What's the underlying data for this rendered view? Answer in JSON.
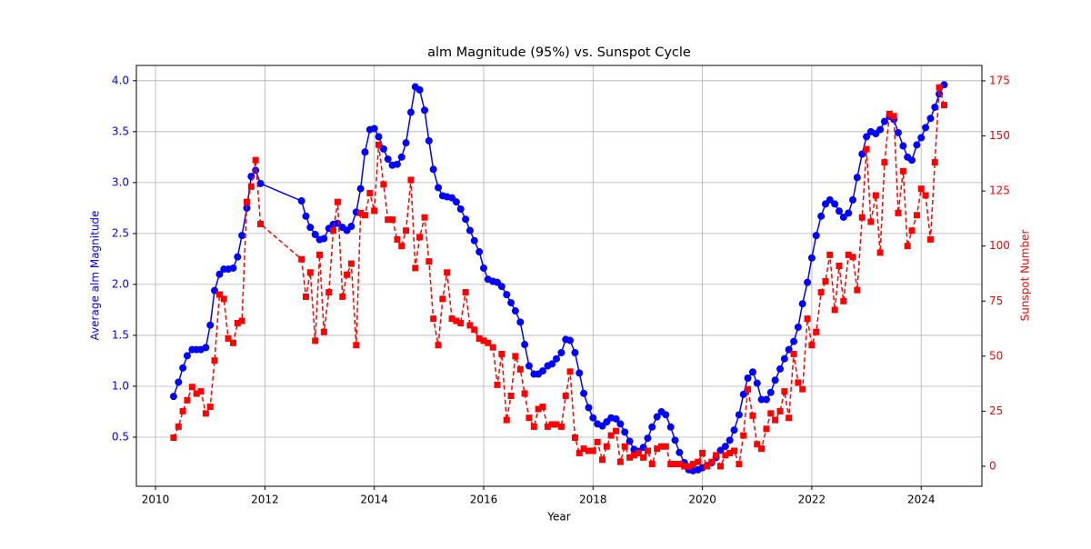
{
  "chart_data": {
    "type": "line",
    "title": "alm Magnitude (95%) vs. Sunspot Cycle",
    "xlabel": "Year",
    "ylabel": "Average alm Magnitude",
    "y2label": "Sunspot Number",
    "x": [
      2010.33,
      2010.42,
      2010.5,
      2010.58,
      2010.67,
      2010.75,
      2010.83,
      2010.92,
      2011.0,
      2011.08,
      2011.17,
      2011.25,
      2011.33,
      2011.42,
      2011.5,
      2011.58,
      2011.67,
      2011.75,
      2011.83,
      2011.92,
      2012.67,
      2012.75,
      2012.83,
      2012.92,
      2013.0,
      2013.08,
      2013.17,
      2013.25,
      2013.33,
      2013.42,
      2013.5,
      2013.58,
      2013.67,
      2013.75,
      2013.83,
      2013.92,
      2014.0,
      2014.08,
      2014.17,
      2014.25,
      2014.33,
      2014.42,
      2014.5,
      2014.58,
      2014.67,
      2014.75,
      2014.83,
      2014.92,
      2015.0,
      2015.08,
      2015.17,
      2015.25,
      2015.33,
      2015.42,
      2015.5,
      2015.58,
      2015.67,
      2015.75,
      2015.83,
      2015.92,
      2016.0,
      2016.08,
      2016.17,
      2016.25,
      2016.33,
      2016.42,
      2016.5,
      2016.58,
      2016.67,
      2016.75,
      2016.83,
      2016.92,
      2017.0,
      2017.08,
      2017.17,
      2017.25,
      2017.33,
      2017.42,
      2017.5,
      2017.58,
      2017.67,
      2017.75,
      2017.83,
      2017.92,
      2018.0,
      2018.08,
      2018.17,
      2018.25,
      2018.33,
      2018.42,
      2018.5,
      2018.58,
      2018.67,
      2018.75,
      2018.83,
      2018.92,
      2019.0,
      2019.08,
      2019.17,
      2019.25,
      2019.33,
      2019.42,
      2019.5,
      2019.58,
      2019.67,
      2019.75,
      2019.83,
      2019.92,
      2020.0,
      2020.08,
      2020.17,
      2020.25,
      2020.33,
      2020.42,
      2020.5,
      2020.58,
      2020.67,
      2020.75,
      2020.83,
      2020.92,
      2021.0,
      2021.08,
      2021.17,
      2021.25,
      2021.33,
      2021.42,
      2021.5,
      2021.58,
      2021.67,
      2021.75,
      2021.83,
      2021.92,
      2022.0,
      2022.08,
      2022.17,
      2022.25,
      2022.33,
      2022.42,
      2022.5,
      2022.58,
      2022.67,
      2022.75,
      2022.83,
      2022.92,
      2023.0,
      2023.08,
      2023.17,
      2023.25,
      2023.33,
      2023.42,
      2023.5,
      2023.58,
      2023.67,
      2023.75,
      2023.83,
      2023.92,
      2024.0,
      2024.08,
      2024.17,
      2024.25,
      2024.33,
      2024.42
    ],
    "series": [
      {
        "color": "#0000ff",
        "marker": "circle",
        "linestyle": "solid",
        "axis": "y",
        "values": [
          0.9,
          1.04,
          1.18,
          1.3,
          1.36,
          1.36,
          1.36,
          1.38,
          1.6,
          1.94,
          2.1,
          2.15,
          2.15,
          2.16,
          2.27,
          2.48,
          2.75,
          3.06,
          3.12,
          2.99,
          2.82,
          2.67,
          2.56,
          2.49,
          2.44,
          2.45,
          2.55,
          2.59,
          2.6,
          2.56,
          2.53,
          2.57,
          2.71,
          2.94,
          3.3,
          3.52,
          3.53,
          3.45,
          3.33,
          3.23,
          3.17,
          3.18,
          3.25,
          3.39,
          3.69,
          3.94,
          3.91,
          3.71,
          3.41,
          3.13,
          2.95,
          2.87,
          2.86,
          2.85,
          2.81,
          2.74,
          2.64,
          2.53,
          2.43,
          2.32,
          2.16,
          2.05,
          2.03,
          2.02,
          1.98,
          1.9,
          1.82,
          1.74,
          1.63,
          1.41,
          1.2,
          1.12,
          1.12,
          1.15,
          1.2,
          1.22,
          1.27,
          1.33,
          1.46,
          1.45,
          1.33,
          1.13,
          0.93,
          0.79,
          0.69,
          0.63,
          0.61,
          0.65,
          0.69,
          0.68,
          0.63,
          0.55,
          0.46,
          0.38,
          0.36,
          0.4,
          0.49,
          0.6,
          0.7,
          0.75,
          0.72,
          0.6,
          0.47,
          0.35,
          0.25,
          0.18,
          0.17,
          0.18,
          0.2,
          0.22,
          0.25,
          0.3,
          0.37,
          0.41,
          0.47,
          0.57,
          0.72,
          0.92,
          1.08,
          1.14,
          1.03,
          0.87,
          0.87,
          0.94,
          1.06,
          1.17,
          1.27,
          1.36,
          1.44,
          1.58,
          1.81,
          2.02,
          2.26,
          2.48,
          2.67,
          2.79,
          2.83,
          2.79,
          2.72,
          2.66,
          2.7,
          2.83,
          3.05,
          3.28,
          3.45,
          3.5,
          3.48,
          3.52,
          3.6,
          3.65,
          3.62,
          3.49,
          3.36,
          3.25,
          3.22,
          3.37,
          3.44,
          3.54,
          3.63,
          3.74,
          3.87,
          3.96
        ]
      },
      {
        "color": "#ff0000",
        "marker": "square",
        "linestyle": "dashed",
        "axis": "y2",
        "values": [
          13,
          18,
          25,
          30,
          36,
          33,
          34,
          24,
          27,
          48,
          78,
          76,
          58,
          56,
          65,
          66,
          120,
          127,
          139,
          110,
          94,
          77,
          88,
          57,
          96,
          61,
          79,
          107,
          120,
          77,
          87,
          92,
          55,
          115,
          114,
          124,
          116,
          146,
          128,
          112,
          112,
          103,
          100,
          107,
          130,
          90,
          104,
          113,
          93,
          67,
          55,
          76,
          88,
          67,
          66,
          65,
          79,
          64,
          62,
          58,
          57,
          56,
          54,
          37,
          51,
          21,
          32,
          50,
          44,
          33,
          22,
          18,
          26,
          27,
          18,
          19,
          19,
          18,
          32,
          43,
          13,
          6,
          8,
          7,
          7,
          11,
          3,
          9,
          14,
          16,
          2,
          9,
          4,
          5,
          6,
          4,
          7,
          1,
          8,
          9,
          9,
          1,
          1,
          1,
          0,
          0,
          1,
          2,
          6,
          0,
          2,
          5,
          0,
          5,
          6,
          7,
          1,
          14,
          35,
          23,
          10,
          8,
          17,
          24,
          21,
          25,
          34,
          22,
          51,
          38,
          35,
          67,
          55,
          61,
          79,
          84,
          96,
          71,
          91,
          75,
          96,
          95,
          80,
          113,
          144,
          111,
          123,
          97,
          138,
          160,
          159,
          115,
          134,
          100,
          107,
          114,
          126,
          123,
          103,
          138,
          172,
          164
        ]
      }
    ],
    "xlim": [
      2009.65,
      2025.11
    ],
    "xticks": [
      2010,
      2012,
      2014,
      2016,
      2018,
      2020,
      2022,
      2024
    ],
    "ylim": [
      0.018,
      4.15
    ],
    "yticks": [
      0.5,
      {
        "value": 1.0,
        "label": "1.0"
      },
      1.5,
      {
        "value": 2.0,
        "label": "2.0"
      },
      2.5,
      {
        "value": 3.0,
        "label": "3.0"
      },
      3.5,
      {
        "value": 4.0,
        "label": "4.0"
      }
    ],
    "y2lim": [
      -9.08,
      182
    ],
    "y2ticks": [
      0,
      25,
      50,
      75,
      100,
      125,
      150,
      175
    ],
    "grid": true
  }
}
